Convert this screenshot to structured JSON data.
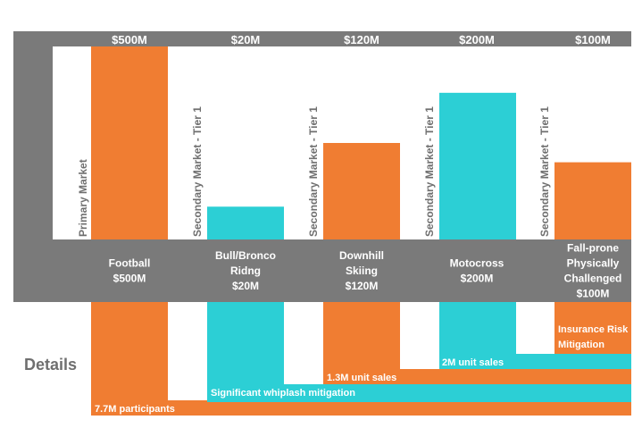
{
  "chart_data": {
    "type": "bar",
    "categories": [
      "Football",
      "Bull/Bronco Ridng",
      "Downhill Skiing",
      "Motocross",
      "Fall-prone Physically Challenged"
    ],
    "category_lines": [
      [
        "Football",
        "$500M"
      ],
      [
        "Bull/Bronco",
        "Ridng",
        "$20M"
      ],
      [
        "Downhill",
        "Skiing",
        "$120M"
      ],
      [
        "Motocross",
        "$200M"
      ],
      [
        "Fall-prone",
        "Physically",
        "Challenged",
        "$100M"
      ]
    ],
    "top_labels": [
      "$500M",
      "$20M",
      "$120M",
      "$200M",
      "$100M"
    ],
    "values": [
      500,
      20,
      120,
      200,
      100
    ],
    "bar_heights_relative": [
      1.0,
      0.17,
      0.5,
      0.76,
      0.4
    ],
    "market_labels": [
      "Primary Market",
      "Secondary Market - Tier 1",
      "Secondary Market - Tier 1",
      "Secondary Market - Tier 1",
      "Secondary Market - Tier 1"
    ],
    "bar_colors": [
      "#f07d32",
      "#2ccfd5",
      "#f07d32",
      "#2ccfd5",
      "#f07d32"
    ],
    "details_label": "Details",
    "details": [
      "7.7M participants",
      "Significant whiplash mitigation",
      "1.3M unit sales",
      "2M unit sales",
      "Insurance Risk Mitigation"
    ],
    "detail_lines": [
      [
        "7.7M participants"
      ],
      [
        "Significant whiplash mitigation"
      ],
      [
        "1.3M unit sales"
      ],
      [
        "2M unit sales"
      ],
      [
        "Insurance Risk",
        "Mitigation"
      ]
    ],
    "colors": {
      "orange": "#f07d32",
      "teal": "#2ccfd5",
      "frame": "#7a7a7a",
      "text_gray": "#6f6f6f"
    }
  }
}
